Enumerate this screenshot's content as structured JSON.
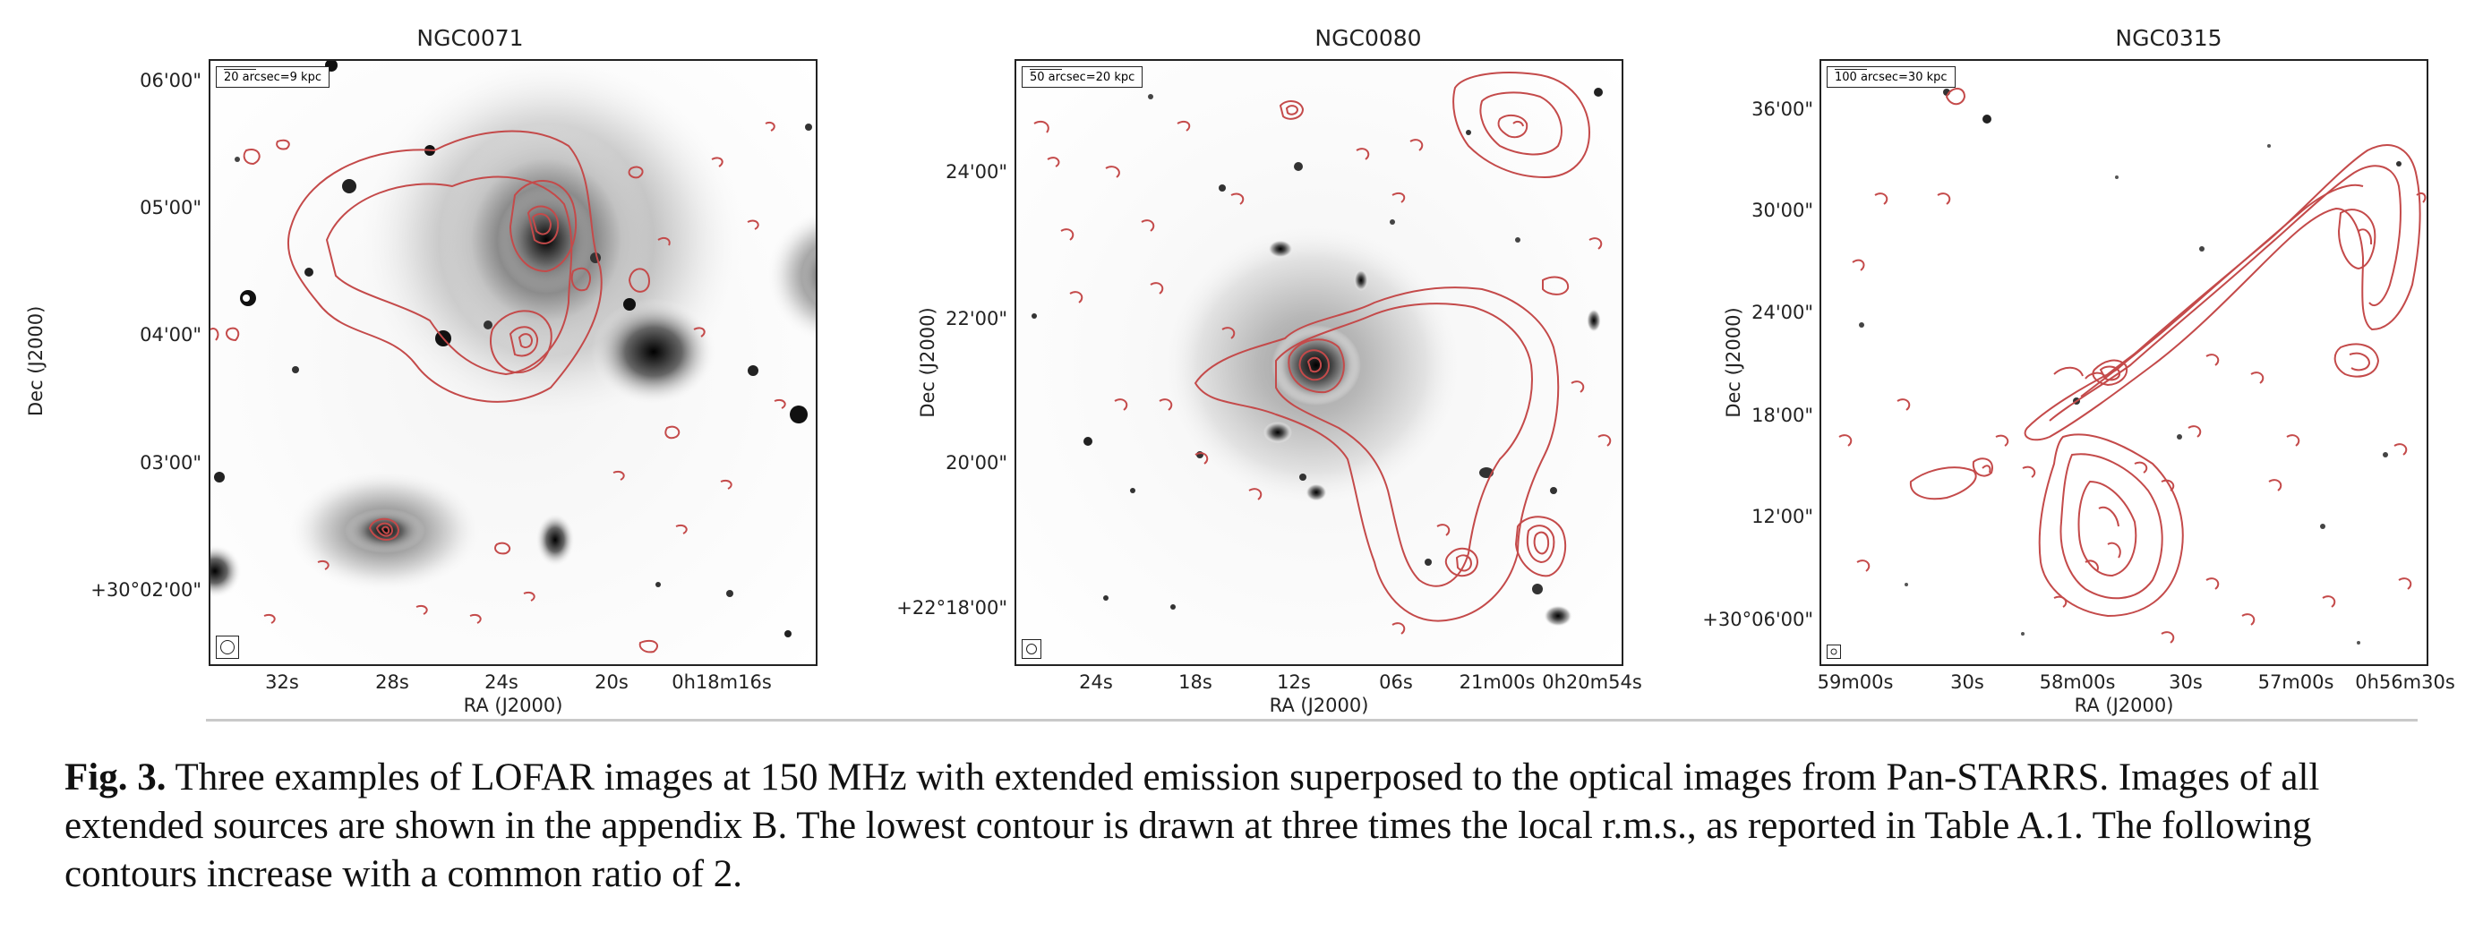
{
  "panels": [
    {
      "title": "NGC0071",
      "scale_label": "20 arcsec=9 kpc",
      "y_ticks": [
        "06'00\"",
        "05'00\"",
        "04'00\"",
        "03'00\"",
        "+30°02'00\""
      ],
      "x_ticks": [
        "32s",
        "28s",
        "24s",
        "20s",
        "0h18m16s"
      ],
      "x_axis_label": "RA (J2000)",
      "y_axis_label": "Dec (J2000)"
    },
    {
      "title": "NGC0080",
      "scale_label": "50 arcsec=20 kpc",
      "y_ticks": [
        "24'00\"",
        "22'00\"",
        "20'00\"",
        "+22°18'00\""
      ],
      "x_ticks": [
        "24s",
        "18s",
        "12s",
        "06s",
        "21m00s",
        "0h20m54s"
      ],
      "x_axis_label": "RA (J2000)",
      "y_axis_label": "Dec (J2000)"
    },
    {
      "title": "NGC0315",
      "scale_label": "100 arcsec=30 kpc",
      "y_ticks": [
        "36'00\"",
        "30'00\"",
        "24'00\"",
        "18'00\"",
        "12'00\"",
        "+30°06'00\""
      ],
      "x_ticks": [
        "59m00s",
        "30s",
        "58m00s",
        "30s",
        "57m00s",
        "0h56m30s"
      ],
      "x_axis_label": "RA (J2000)",
      "y_axis_label": "Dec (J2000)"
    }
  ],
  "caption": {
    "label": "Fig. 3.",
    "text": " Three examples of LOFAR images at 150 MHz with extended emission superposed to the optical images from Pan-STARRS. Images of all extended sources are shown in the appendix B. The lowest contour is drawn at three times the local r.m.s., as reported in Table A.1. The following contours increase with a common ratio of 2."
  },
  "colors": {
    "contour": "#c44a4a",
    "frame": "#222222",
    "text": "#111111"
  }
}
